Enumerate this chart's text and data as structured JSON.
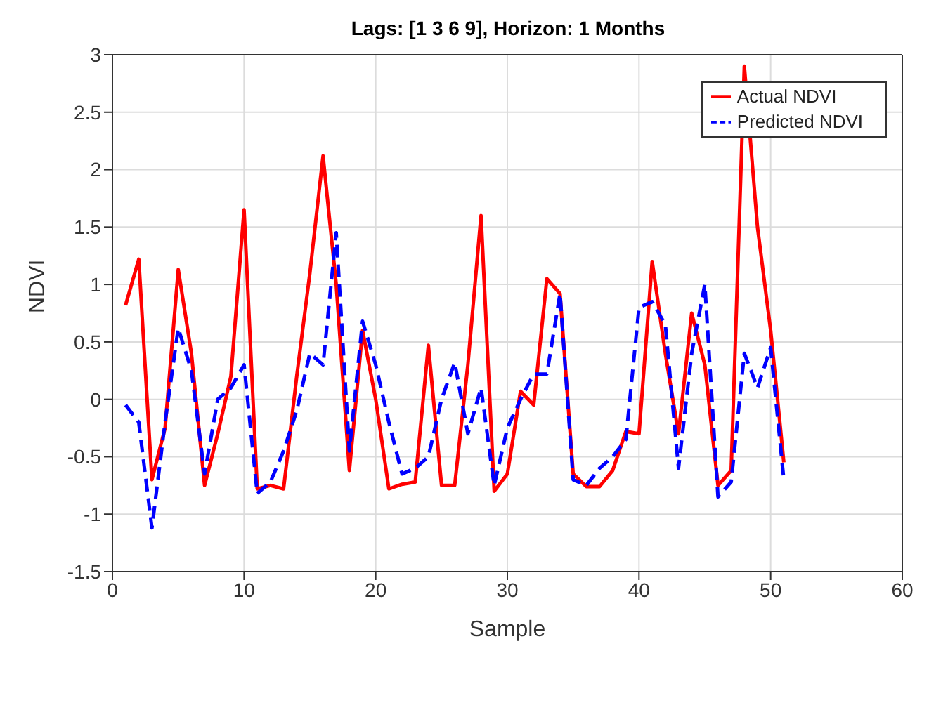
{
  "chart_data": {
    "type": "line",
    "title": "Lags: [1 3 6 9], Horizon: 1 Months",
    "xlabel": "Sample",
    "ylabel": "NDVI",
    "x": [
      1,
      2,
      3,
      4,
      5,
      6,
      7,
      8,
      9,
      10,
      11,
      12,
      13,
      14,
      15,
      16,
      17,
      18,
      19,
      20,
      21,
      22,
      23,
      24,
      25,
      26,
      27,
      28,
      29,
      30,
      31,
      32,
      33,
      34,
      35,
      36,
      37,
      38,
      39,
      40,
      41,
      42,
      43,
      44,
      45,
      46,
      47,
      48,
      49,
      50,
      51
    ],
    "series": [
      {
        "name": "Actual NDVI",
        "color": "#ff0000",
        "line_style": "solid",
        "values": [
          0.82,
          1.22,
          -0.7,
          -0.25,
          1.13,
          0.4,
          -0.75,
          -0.3,
          0.2,
          1.65,
          -0.78,
          -0.75,
          -0.78,
          0.2,
          1.1,
          2.12,
          1.0,
          -0.62,
          0.6,
          0.0,
          -0.78,
          -0.74,
          -0.72,
          0.47,
          -0.75,
          -0.75,
          0.3,
          1.6,
          -0.8,
          -0.65,
          0.07,
          -0.05,
          1.05,
          0.92,
          -0.65,
          -0.76,
          -0.76,
          -0.62,
          -0.28,
          -0.3,
          1.2,
          0.4,
          -0.3,
          0.75,
          0.3,
          -0.75,
          -0.62,
          2.9,
          1.5,
          0.6,
          -0.55
        ]
      },
      {
        "name": "Predicted NDVI",
        "color": "#0000ff",
        "line_style": "dashed",
        "values": [
          -0.05,
          -0.2,
          -1.12,
          -0.2,
          0.62,
          0.25,
          -0.65,
          0.0,
          0.1,
          0.3,
          -0.82,
          -0.72,
          -0.45,
          -0.1,
          0.4,
          0.3,
          1.45,
          -0.45,
          0.68,
          0.3,
          -0.2,
          -0.65,
          -0.6,
          -0.5,
          0.0,
          0.32,
          -0.3,
          0.1,
          -0.75,
          -0.25,
          0.0,
          0.22,
          0.22,
          0.92,
          -0.7,
          -0.75,
          -0.6,
          -0.5,
          -0.35,
          0.8,
          0.85,
          0.65,
          -0.6,
          0.4,
          1.0,
          -0.85,
          -0.72,
          0.4,
          0.1,
          0.45,
          -0.7
        ]
      }
    ],
    "xlim": [
      0,
      60
    ],
    "xticks": [
      0,
      10,
      20,
      30,
      40,
      50,
      60
    ],
    "ylim": [
      -1.5,
      3
    ],
    "yticks": [
      -1.5,
      -1,
      -0.5,
      0,
      0.5,
      1,
      1.5,
      2,
      2.5,
      3
    ],
    "grid": true,
    "legend": "top right",
    "marker": "none"
  }
}
